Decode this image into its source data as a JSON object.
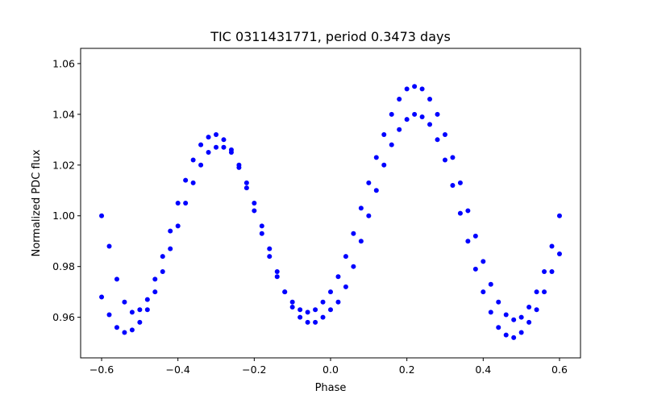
{
  "chart_data": {
    "type": "scatter",
    "title": "TIC 0311431771, period 0.3473 days",
    "xlabel": "Phase",
    "ylabel": "Normalized PDC flux",
    "xlim": [
      -0.655,
      0.655
    ],
    "ylim": [
      0.944,
      1.066
    ],
    "x_ticks": [
      -0.6,
      -0.4,
      -0.2,
      0.0,
      0.2,
      0.4,
      0.6
    ],
    "x_tick_labels": [
      "−0.6",
      "−0.4",
      "−0.2",
      "0.0",
      "0.2",
      "0.4",
      "0.6"
    ],
    "y_ticks": [
      0.96,
      0.98,
      1.0,
      1.02,
      1.04,
      1.06
    ],
    "y_tick_labels": [
      "0.96",
      "0.98",
      "1.00",
      "1.02",
      "1.04",
      "1.06"
    ],
    "grid": false,
    "marker_color": "#0000ff",
    "series": [
      {
        "x": [
          -0.6,
          -0.58,
          -0.56,
          -0.54,
          -0.52,
          -0.5,
          -0.48,
          -0.46,
          -0.44,
          -0.42,
          -0.4,
          -0.38,
          -0.36,
          -0.34,
          -0.32,
          -0.3,
          -0.28,
          -0.26,
          -0.24,
          -0.22,
          -0.2,
          -0.18,
          -0.16,
          -0.14,
          -0.12,
          -0.1,
          -0.08,
          -0.06,
          -0.04,
          -0.02,
          0.0,
          0.02,
          0.04,
          0.06,
          0.08,
          0.1,
          0.12,
          0.14,
          0.16,
          0.18,
          0.2,
          0.22,
          0.24,
          0.26,
          0.28,
          0.3,
          0.32,
          0.34,
          0.36,
          0.38,
          0.4,
          0.42,
          0.44,
          0.46,
          0.48,
          0.5,
          0.52,
          0.54,
          0.56,
          0.58,
          0.6
        ],
        "y": [
          1.0,
          0.988,
          0.975,
          0.966,
          0.962,
          0.963,
          0.967,
          0.975,
          0.984,
          0.994,
          1.005,
          1.014,
          1.022,
          1.028,
          1.031,
          1.032,
          1.03,
          1.026,
          1.019,
          1.011,
          1.002,
          0.993,
          0.984,
          0.976,
          0.97,
          0.966,
          0.963,
          0.962,
          0.963,
          0.966,
          0.97,
          0.976,
          0.984,
          0.993,
          1.003,
          1.013,
          1.023,
          1.032,
          1.04,
          1.046,
          1.05,
          1.051,
          1.05,
          1.046,
          1.04,
          1.032,
          1.023,
          1.013,
          1.002,
          0.992,
          0.982,
          0.973,
          0.966,
          0.961,
          0.959,
          0.96,
          0.964,
          0.97,
          0.978,
          0.988,
          1.0
        ]
      },
      {
        "x": [
          -0.6,
          -0.58,
          -0.56,
          -0.54,
          -0.52,
          -0.5,
          -0.48,
          -0.46,
          -0.44,
          -0.42,
          -0.4,
          -0.38,
          -0.36,
          -0.34,
          -0.32,
          -0.3,
          -0.28,
          -0.26,
          -0.24,
          -0.22,
          -0.2,
          -0.18,
          -0.16,
          -0.14,
          -0.12,
          -0.1,
          -0.08,
          -0.06,
          -0.04,
          -0.02,
          0.0,
          0.02,
          0.04,
          0.06,
          0.08,
          0.1,
          0.12,
          0.14,
          0.16,
          0.18,
          0.2,
          0.22,
          0.24,
          0.26,
          0.28,
          0.3,
          0.32,
          0.34,
          0.36,
          0.38,
          0.4,
          0.42,
          0.44,
          0.46,
          0.48,
          0.5,
          0.52,
          0.54,
          0.56,
          0.58,
          0.6
        ],
        "y": [
          0.968,
          0.961,
          0.956,
          0.954,
          0.955,
          0.958,
          0.963,
          0.97,
          0.978,
          0.987,
          0.996,
          1.005,
          1.013,
          1.02,
          1.025,
          1.027,
          1.027,
          1.025,
          1.02,
          1.013,
          1.005,
          0.996,
          0.987,
          0.978,
          0.97,
          0.964,
          0.96,
          0.958,
          0.958,
          0.96,
          0.963,
          0.966,
          0.972,
          0.98,
          0.99,
          1.0,
          1.01,
          1.02,
          1.028,
          1.034,
          1.038,
          1.04,
          1.039,
          1.036,
          1.03,
          1.022,
          1.012,
          1.001,
          0.99,
          0.979,
          0.97,
          0.962,
          0.956,
          0.953,
          0.952,
          0.954,
          0.958,
          0.963,
          0.97,
          0.978,
          0.985
        ]
      }
    ]
  }
}
